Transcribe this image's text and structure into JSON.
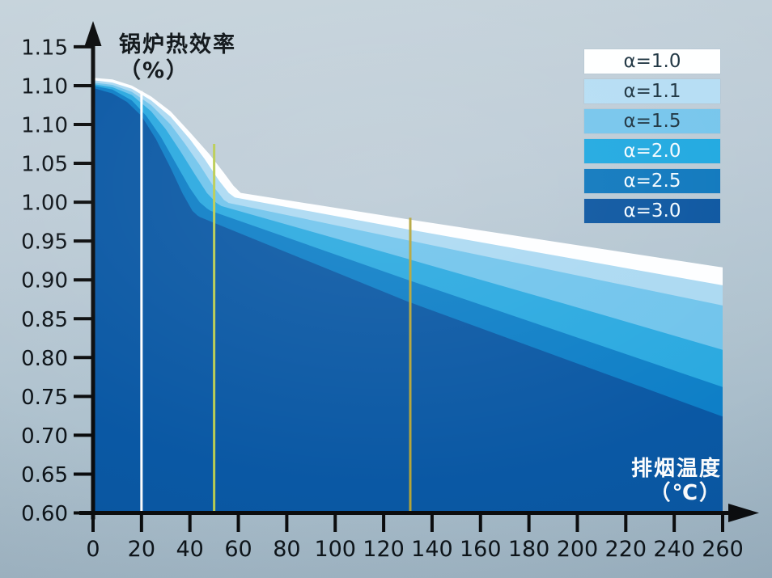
{
  "chart_data": {
    "type": "area",
    "title_y": {
      "line1": "锅炉热效率",
      "line2": "（%）"
    },
    "title_x": {
      "line1": "排烟温度",
      "line2": "（℃）"
    },
    "x_axis": {
      "tick_labels": [
        "0",
        "20",
        "40",
        "60",
        "80",
        "100",
        "120",
        "140",
        "160",
        "180",
        "200",
        "220",
        "240",
        "260"
      ],
      "range": [
        0,
        260
      ]
    },
    "y_axis": {
      "tick_labels": [
        "1.15",
        "1.10",
        "1.10",
        "1.05",
        "1.00",
        "0.95",
        "0.90",
        "0.85",
        "0.80",
        "0.75",
        "0.70",
        "0.65",
        "0.60"
      ],
      "value_bottom": 0.6,
      "value_top": 1.2,
      "note": "13 evenly spaced ticks as printed; second label 1.10 is duplicated in the source figure"
    },
    "series": [
      {
        "name": "α=1.0",
        "color": "#fdfeff",
        "points": [
          [
            0,
            1.16
          ],
          [
            8,
            1.158
          ],
          [
            16,
            1.15
          ],
          [
            24,
            1.136
          ],
          [
            32,
            1.117
          ],
          [
            40,
            1.09
          ],
          [
            48,
            1.062
          ],
          [
            54,
            1.038
          ],
          [
            58,
            1.021
          ],
          [
            61,
            1.012
          ],
          [
            130,
            0.978
          ],
          [
            195,
            0.947
          ],
          [
            260,
            0.916
          ]
        ]
      },
      {
        "name": "α=1.1",
        "color": "#abd9f2",
        "points": [
          [
            0,
            1.157
          ],
          [
            8,
            1.154
          ],
          [
            16,
            1.146
          ],
          [
            24,
            1.131
          ],
          [
            32,
            1.11
          ],
          [
            40,
            1.081
          ],
          [
            46,
            1.056
          ],
          [
            52,
            1.028
          ],
          [
            56,
            1.012
          ],
          [
            58.5,
            1.006
          ],
          [
            130,
            0.965
          ],
          [
            195,
            0.929
          ],
          [
            260,
            0.893
          ]
        ]
      },
      {
        "name": "α=1.5",
        "color": "#70c4ec",
        "points": [
          [
            0,
            1.154
          ],
          [
            8,
            1.151
          ],
          [
            16,
            1.142
          ],
          [
            24,
            1.125
          ],
          [
            32,
            1.1
          ],
          [
            38,
            1.075
          ],
          [
            44,
            1.048
          ],
          [
            50,
            1.019
          ],
          [
            54,
            1.003
          ],
          [
            56,
            0.999
          ],
          [
            130,
            0.951
          ],
          [
            195,
            0.909
          ],
          [
            260,
            0.867
          ]
        ]
      },
      {
        "name": "α=2.0",
        "color": "#2aa9e0",
        "points": [
          [
            0,
            1.152
          ],
          [
            8,
            1.148
          ],
          [
            16,
            1.138
          ],
          [
            24,
            1.117
          ],
          [
            30,
            1.094
          ],
          [
            36,
            1.066
          ],
          [
            42,
            1.036
          ],
          [
            47,
            1.012
          ],
          [
            51,
            0.999
          ],
          [
            53,
            0.995
          ],
          [
            130,
            0.927
          ],
          [
            195,
            0.869
          ],
          [
            260,
            0.81
          ]
        ]
      },
      {
        "name": "α=2.5",
        "color": "#0e7fc7",
        "points": [
          [
            0,
            1.15
          ],
          [
            8,
            1.145
          ],
          [
            16,
            1.131
          ],
          [
            22,
            1.111
          ],
          [
            28,
            1.084
          ],
          [
            34,
            1.051
          ],
          [
            40,
            1.018
          ],
          [
            44,
            1.0
          ],
          [
            47,
            0.992
          ],
          [
            48.5,
            0.989
          ],
          [
            130,
            0.9
          ],
          [
            195,
            0.831
          ],
          [
            260,
            0.762
          ]
        ]
      },
      {
        "name": "α=3.0",
        "color": "#0a58a4",
        "points": [
          [
            0,
            1.147
          ],
          [
            8,
            1.14
          ],
          [
            14,
            1.129
          ],
          [
            20,
            1.111
          ],
          [
            26,
            1.081
          ],
          [
            32,
            1.044
          ],
          [
            37,
            1.011
          ],
          [
            41,
            0.989
          ],
          [
            43,
            0.983
          ],
          [
            44,
            0.981
          ],
          [
            130,
            0.872
          ],
          [
            195,
            0.798
          ],
          [
            260,
            0.724
          ]
        ]
      }
    ],
    "ref_lines": [
      {
        "x": 20,
        "top": 1.143,
        "color": "#ffffff",
        "name": "ref-line-20C"
      },
      {
        "x": 50,
        "top": 1.075,
        "color": "#b9cc52",
        "name": "ref-line-50C"
      },
      {
        "x": 131,
        "top": 0.98,
        "color": "#b3a438",
        "name": "ref-line-130C"
      }
    ],
    "legend": [
      {
        "label": "α=1.0",
        "swatch": "#feffff",
        "text_color": "#1c3340"
      },
      {
        "label": "α=1.1",
        "swatch": "#b5ddf4",
        "text_color": "#1c3340"
      },
      {
        "label": "α=1.5",
        "swatch": "#75c5ec",
        "text_color": "#1c3340"
      },
      {
        "label": "α=2.0",
        "swatch": "#1ea8e0",
        "text_color": "#f4fbff"
      },
      {
        "label": "α=2.5",
        "swatch": "#0d77bd",
        "text_color": "#f4fbff"
      },
      {
        "label": "α=3.0",
        "swatch": "#0a55a0",
        "text_color": "#f4fbff"
      }
    ],
    "axis_color": "#0b0c0d",
    "tick_text_color": "#0d1318"
  }
}
